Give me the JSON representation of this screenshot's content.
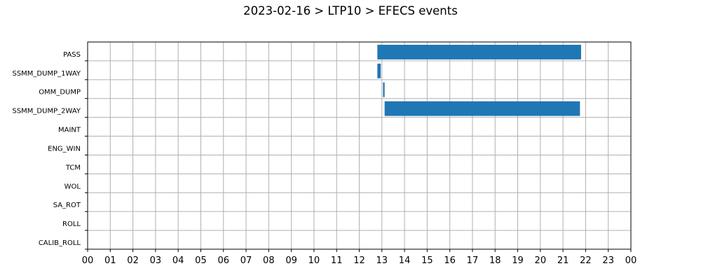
{
  "chart_data": {
    "type": "bar",
    "orientation": "horizontal-timeline",
    "title": "2023-02-16 > LTP10 > EFECS events",
    "xlabel": "",
    "ylabel": "",
    "xlim": [
      0,
      24
    ],
    "x_tick_labels": [
      "00",
      "01",
      "02",
      "03",
      "04",
      "05",
      "06",
      "07",
      "08",
      "09",
      "10",
      "11",
      "12",
      "13",
      "14",
      "15",
      "16",
      "17",
      "18",
      "19",
      "20",
      "21",
      "22",
      "23",
      "00"
    ],
    "categories": [
      "PASS",
      "SSMM_DUMP_1WAY",
      "OMM_DUMP",
      "SSMM_DUMP_2WAY",
      "MAINT",
      "ENG_WIN",
      "TCM",
      "WOL",
      "SA_ROT",
      "ROLL",
      "CALIB_ROLL"
    ],
    "events": [
      {
        "category": "PASS",
        "start": 12.8,
        "end": 21.8
      },
      {
        "category": "SSMM_DUMP_1WAY",
        "start": 12.8,
        "end": 12.95
      },
      {
        "category": "OMM_DUMP",
        "start": 13.05,
        "end": 13.12
      },
      {
        "category": "SSMM_DUMP_2WAY",
        "start": 13.12,
        "end": 21.75
      }
    ],
    "grid": true,
    "legend": "none",
    "colors": {
      "bar": "#1f77b4",
      "grid": "#b0b0b0",
      "axis": "#000000"
    }
  }
}
